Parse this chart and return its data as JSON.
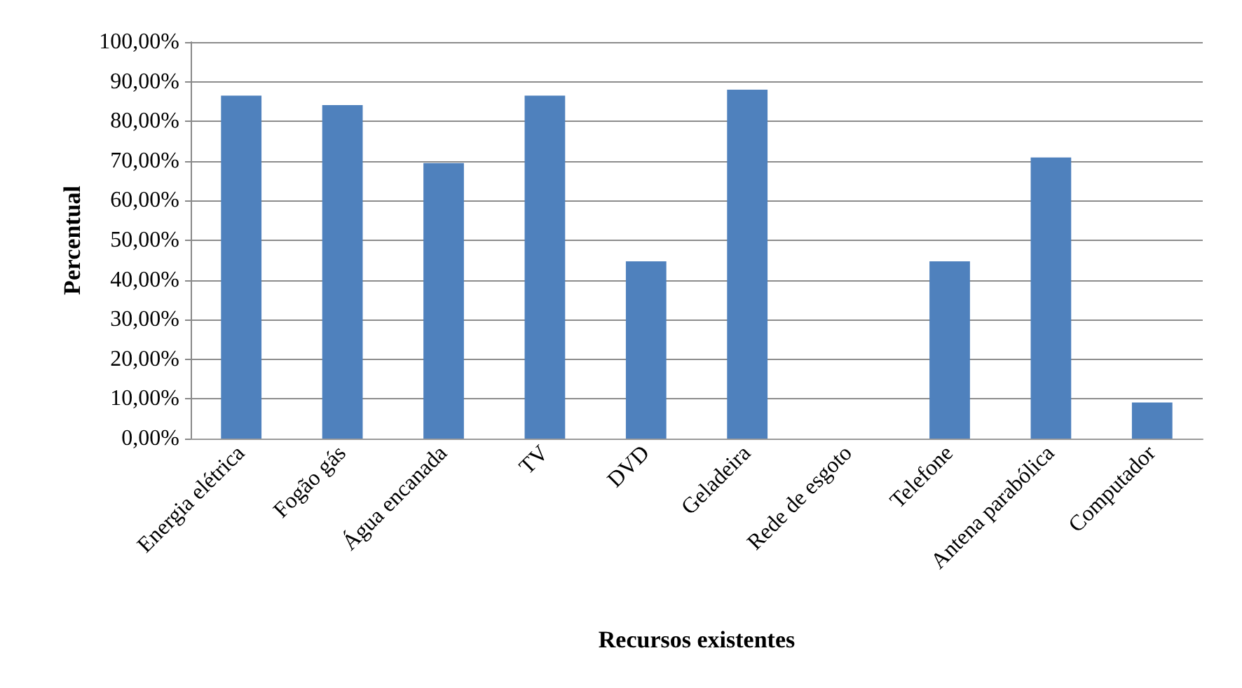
{
  "chart_data": {
    "type": "bar",
    "xlabel": "Recursos existentes",
    "ylabel": "Percentual",
    "categories": [
      "Energia elétrica",
      "Fogão gás",
      "Água encanada",
      "TV",
      "DVD",
      "Geladeira",
      "Rede de esgoto",
      "Telefone",
      "Antena parabólica",
      "Computador"
    ],
    "values": [
      86.5,
      84.1,
      69.5,
      86.5,
      44.7,
      88.0,
      0,
      44.7,
      70.9,
      9.1
    ],
    "color": "#4f81bd",
    "ylim": [
      0,
      100
    ],
    "yticks": [
      {
        "value": 0,
        "label": "0,00%"
      },
      {
        "value": 10,
        "label": "10,00%"
      },
      {
        "value": 20,
        "label": "20,00%"
      },
      {
        "value": 30,
        "label": "30,00%"
      },
      {
        "value": 40,
        "label": "40,00%"
      },
      {
        "value": 50,
        "label": "50,00%"
      },
      {
        "value": 60,
        "label": "60,00%"
      },
      {
        "value": 70,
        "label": "70,00%"
      },
      {
        "value": 80,
        "label": "80,00%"
      },
      {
        "value": 90,
        "label": "90,00%"
      },
      {
        "value": 100,
        "label": "100,00%"
      }
    ],
    "grid": "y"
  }
}
